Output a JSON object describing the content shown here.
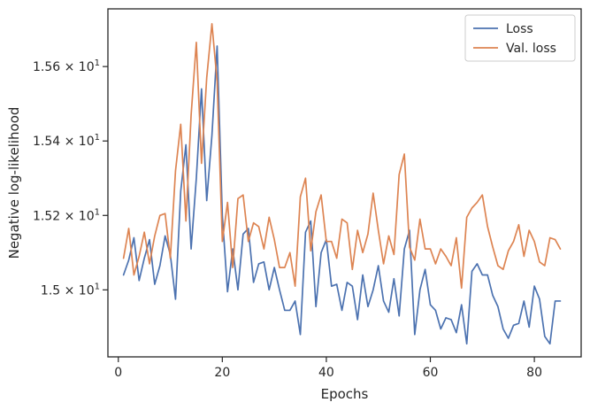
{
  "chart_data": {
    "type": "line",
    "xlabel": "Epochs",
    "ylabel": "Negative log-likelihood",
    "xlim": [
      -2,
      89
    ],
    "ylim": [
      14.82,
      15.755
    ],
    "xticks": [
      0,
      20,
      40,
      60,
      80
    ],
    "xtick_labels": [
      "0",
      "20",
      "40",
      "60",
      "80"
    ],
    "yticks": [
      15.0,
      15.2,
      15.4,
      15.6
    ],
    "ytick_labels": [
      {
        "base": "1.5 × 10",
        "exp": "1"
      },
      {
        "base": "1.52 × 10",
        "exp": "1"
      },
      {
        "base": "1.54 × 10",
        "exp": "1"
      },
      {
        "base": "1.56 × 10",
        "exp": "1"
      }
    ],
    "grid": false,
    "legend_position": "top-right",
    "x": [
      1,
      2,
      3,
      4,
      5,
      6,
      7,
      8,
      9,
      10,
      11,
      12,
      13,
      14,
      15,
      16,
      17,
      18,
      19,
      20,
      21,
      22,
      23,
      24,
      25,
      26,
      27,
      28,
      29,
      30,
      31,
      32,
      33,
      34,
      35,
      36,
      37,
      38,
      39,
      40,
      41,
      42,
      43,
      44,
      45,
      46,
      47,
      48,
      49,
      50,
      51,
      52,
      53,
      54,
      55,
      56,
      57,
      58,
      59,
      60,
      61,
      62,
      63,
      64,
      65,
      66,
      67,
      68,
      69,
      70,
      71,
      72,
      73,
      74,
      75,
      76,
      77,
      78,
      79,
      80,
      81,
      82,
      83,
      84,
      85
    ],
    "series": [
      {
        "name": "Loss",
        "color": "#4c72b0",
        "values": [
          15.04,
          15.08,
          15.14,
          15.025,
          15.085,
          15.135,
          15.015,
          15.065,
          15.145,
          15.095,
          14.975,
          15.265,
          15.39,
          15.11,
          15.3,
          15.54,
          15.24,
          15.415,
          15.655,
          15.2,
          14.995,
          15.11,
          15.0,
          15.15,
          15.165,
          15.02,
          15.07,
          15.075,
          15.0,
          15.06,
          15.0,
          14.945,
          14.945,
          14.97,
          14.88,
          15.155,
          15.185,
          14.955,
          15.1,
          15.135,
          15.01,
          15.015,
          14.945,
          15.02,
          15.01,
          14.92,
          15.04,
          14.955,
          15.0,
          15.065,
          14.97,
          14.94,
          15.03,
          14.93,
          15.11,
          15.16,
          14.88,
          15.0,
          15.055,
          14.96,
          14.945,
          14.895,
          14.925,
          14.92,
          14.885,
          14.96,
          14.855,
          15.05,
          15.07,
          15.04,
          15.04,
          14.985,
          14.955,
          14.895,
          14.87,
          14.905,
          14.91,
          14.97,
          14.9,
          15.01,
          14.975,
          14.875,
          14.855,
          14.97,
          14.97
        ]
      },
      {
        "name": "Val. loss",
        "color": "#dd8452",
        "values": [
          15.085,
          15.165,
          15.04,
          15.09,
          15.155,
          15.07,
          15.145,
          15.2,
          15.205,
          15.085,
          15.32,
          15.445,
          15.185,
          15.47,
          15.665,
          15.34,
          15.57,
          15.715,
          15.56,
          15.13,
          15.235,
          15.06,
          15.245,
          15.255,
          15.13,
          15.18,
          15.17,
          15.11,
          15.195,
          15.135,
          15.06,
          15.06,
          15.1,
          15.01,
          15.25,
          15.3,
          15.105,
          15.21,
          15.255,
          15.13,
          15.13,
          15.085,
          15.19,
          15.18,
          15.055,
          15.16,
          15.1,
          15.15,
          15.26,
          15.16,
          15.07,
          15.145,
          15.095,
          15.31,
          15.365,
          15.115,
          15.08,
          15.19,
          15.11,
          15.11,
          15.07,
          15.11,
          15.09,
          15.065,
          15.14,
          15.005,
          15.195,
          15.22,
          15.235,
          15.255,
          15.17,
          15.115,
          15.065,
          15.055,
          15.105,
          15.13,
          15.175,
          15.09,
          15.16,
          15.13,
          15.075,
          15.065,
          15.14,
          15.135,
          15.11
        ]
      }
    ]
  }
}
